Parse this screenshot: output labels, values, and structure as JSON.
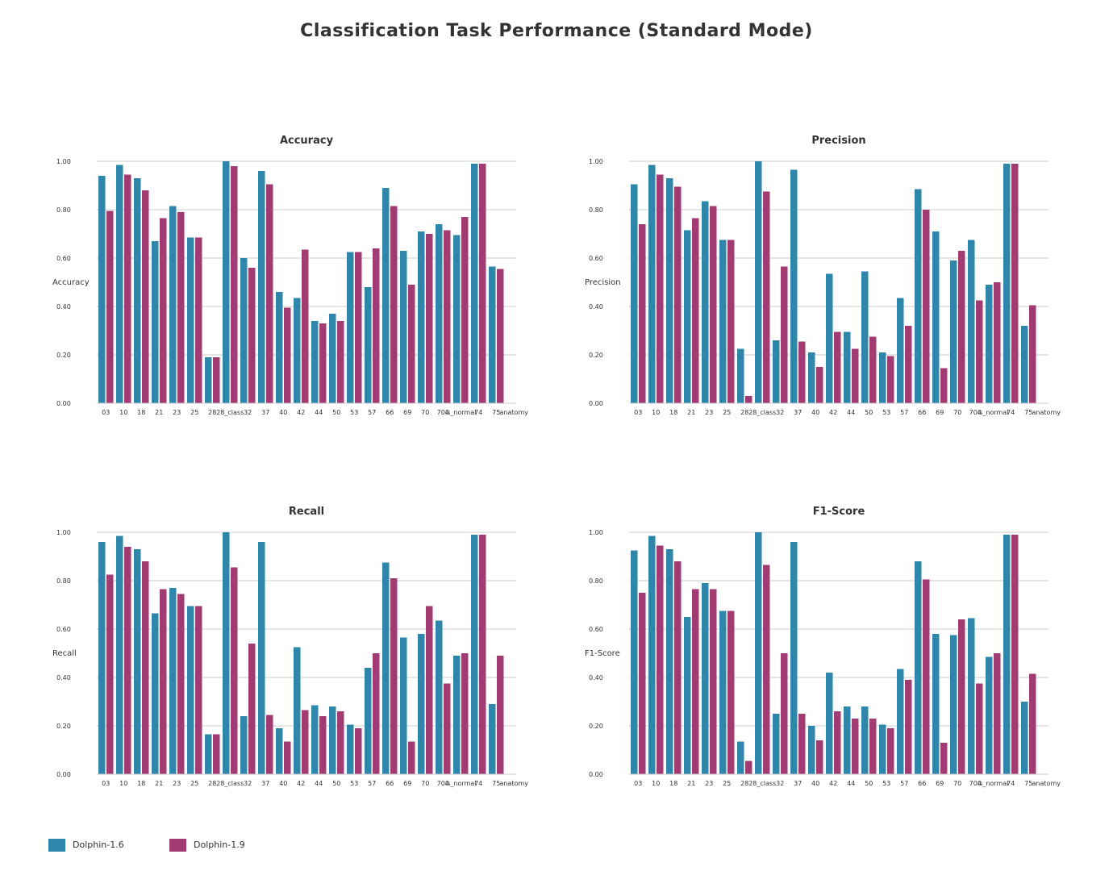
{
  "title": "Classification Task Performance (Standard Mode)",
  "colors": {
    "series_a": "#2e86ab",
    "series_b": "#a23b72",
    "grid": "#cccccc",
    "axis": "#333333"
  },
  "legend": [
    {
      "label": "Dolphin-1.6",
      "color": "#2e86ab"
    },
    {
      "label": "Dolphin-1.9",
      "color": "#a23b72"
    }
  ],
  "chart_data": [
    {
      "type": "bar",
      "title": "Accuracy",
      "ylabel": "Accuracy",
      "xlabel": "",
      "ylim": [
        0,
        1
      ],
      "yticks": [
        "0.00",
        "0.20",
        "0.40",
        "0.60",
        "0.80",
        "1.00"
      ],
      "grid": true,
      "categories": [
        "03",
        "10",
        "18",
        "21",
        "23",
        "25",
        "28",
        "28_class",
        "32",
        "37",
        "40",
        "42",
        "44",
        "50",
        "53",
        "57",
        "66",
        "69",
        "70",
        "704",
        "is_normal",
        "74",
        "75",
        "anatomy"
      ],
      "series": [
        {
          "name": "Dolphin-1.6",
          "values": [
            0.94,
            0.985,
            0.93,
            0.67,
            0.815,
            0.685,
            0.19,
            1.0,
            0.6,
            0.96,
            0.46,
            0.435,
            0.34,
            0.37,
            0.625,
            0.48,
            0.89,
            0.63,
            0.71,
            0.74,
            0.695,
            0.99,
            0.565,
            0.0
          ]
        },
        {
          "name": "Dolphin-1.9",
          "values": [
            0.795,
            0.945,
            0.88,
            0.765,
            0.79,
            0.685,
            0.19,
            0.98,
            0.56,
            0.905,
            0.395,
            0.635,
            0.33,
            0.34,
            0.625,
            0.64,
            0.815,
            0.49,
            0.7,
            0.715,
            0.77,
            0.99,
            0.555,
            0.0
          ]
        }
      ]
    },
    {
      "type": "bar",
      "title": "Precision",
      "ylabel": "Precision",
      "xlabel": "",
      "ylim": [
        0,
        1
      ],
      "yticks": [
        "0.00",
        "0.20",
        "0.40",
        "0.60",
        "0.80",
        "1.00"
      ],
      "grid": true,
      "categories": [
        "03",
        "10",
        "18",
        "21",
        "23",
        "25",
        "28",
        "28_class",
        "32",
        "37",
        "40",
        "42",
        "44",
        "50",
        "53",
        "57",
        "66",
        "69",
        "70",
        "704",
        "is_normal",
        "74",
        "75",
        "anatomy"
      ],
      "series": [
        {
          "name": "Dolphin-1.6",
          "values": [
            0.905,
            0.985,
            0.93,
            0.715,
            0.835,
            0.675,
            0.225,
            1.0,
            0.26,
            0.965,
            0.21,
            0.535,
            0.295,
            0.545,
            0.21,
            0.435,
            0.885,
            0.71,
            0.59,
            0.675,
            0.49,
            0.99,
            0.32,
            0.0
          ]
        },
        {
          "name": "Dolphin-1.9",
          "values": [
            0.74,
            0.945,
            0.895,
            0.765,
            0.815,
            0.675,
            0.03,
            0.875,
            0.565,
            0.255,
            0.15,
            0.295,
            0.225,
            0.275,
            0.195,
            0.32,
            0.8,
            0.145,
            0.63,
            0.425,
            0.5,
            0.99,
            0.405,
            0.0
          ]
        }
      ]
    },
    {
      "type": "bar",
      "title": "Recall",
      "ylabel": "Recall",
      "xlabel": "",
      "ylim": [
        0,
        1
      ],
      "yticks": [
        "0.00",
        "0.20",
        "0.40",
        "0.60",
        "0.80",
        "1.00"
      ],
      "grid": true,
      "categories": [
        "03",
        "10",
        "18",
        "21",
        "23",
        "25",
        "28",
        "28_class",
        "32",
        "37",
        "40",
        "42",
        "44",
        "50",
        "53",
        "57",
        "66",
        "69",
        "70",
        "704",
        "is_normal",
        "74",
        "75",
        "anatomy"
      ],
      "series": [
        {
          "name": "Dolphin-1.6",
          "values": [
            0.96,
            0.985,
            0.93,
            0.665,
            0.77,
            0.695,
            0.165,
            1.0,
            0.24,
            0.96,
            0.19,
            0.525,
            0.285,
            0.28,
            0.205,
            0.44,
            0.875,
            0.565,
            0.58,
            0.635,
            0.49,
            0.99,
            0.29,
            0.0
          ]
        },
        {
          "name": "Dolphin-1.9",
          "values": [
            0.825,
            0.94,
            0.88,
            0.765,
            0.745,
            0.695,
            0.165,
            0.855,
            0.54,
            0.245,
            0.135,
            0.265,
            0.24,
            0.26,
            0.19,
            0.5,
            0.81,
            0.135,
            0.695,
            0.375,
            0.5,
            0.99,
            0.49,
            0.0
          ]
        }
      ]
    },
    {
      "type": "bar",
      "title": "F1-Score",
      "ylabel": "F1-Score",
      "xlabel": "",
      "ylim": [
        0,
        1
      ],
      "yticks": [
        "0.00",
        "0.20",
        "0.40",
        "0.60",
        "0.80",
        "1.00"
      ],
      "grid": true,
      "categories": [
        "03",
        "10",
        "18",
        "21",
        "23",
        "25",
        "28",
        "28_class",
        "32",
        "37",
        "40",
        "42",
        "44",
        "50",
        "53",
        "57",
        "66",
        "69",
        "70",
        "704",
        "is_normal",
        "74",
        "75",
        "anatomy"
      ],
      "series": [
        {
          "name": "Dolphin-1.6",
          "values": [
            0.925,
            0.985,
            0.93,
            0.65,
            0.79,
            0.675,
            0.135,
            1.0,
            0.25,
            0.96,
            0.2,
            0.42,
            0.28,
            0.28,
            0.205,
            0.435,
            0.88,
            0.58,
            0.575,
            0.645,
            0.485,
            0.99,
            0.3,
            0.0
          ]
        },
        {
          "name": "Dolphin-1.9",
          "values": [
            0.75,
            0.945,
            0.88,
            0.765,
            0.765,
            0.675,
            0.055,
            0.865,
            0.5,
            0.25,
            0.14,
            0.26,
            0.23,
            0.23,
            0.19,
            0.39,
            0.805,
            0.13,
            0.64,
            0.375,
            0.5,
            0.99,
            0.415,
            0.0
          ]
        }
      ]
    }
  ]
}
